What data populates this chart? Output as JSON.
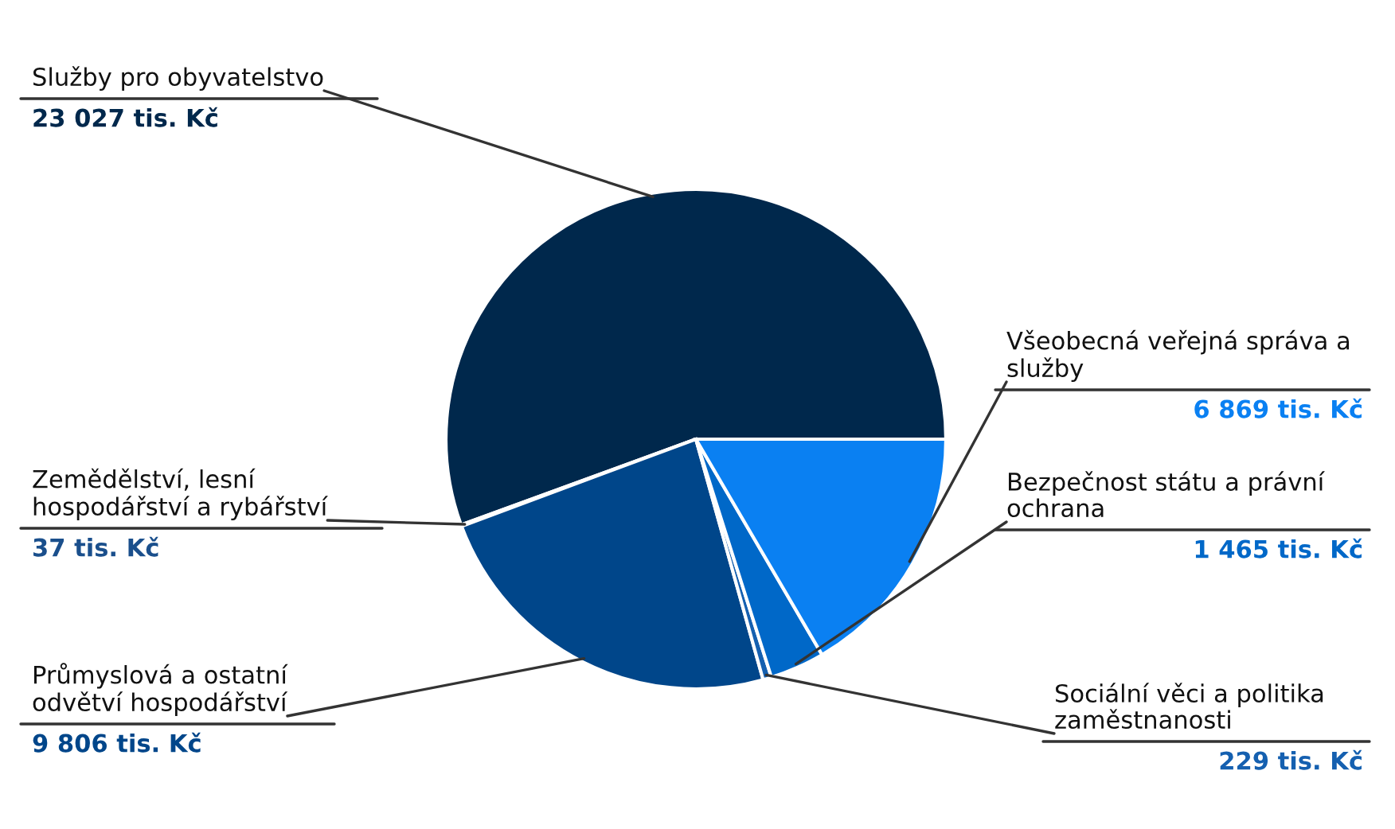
{
  "chart_data": {
    "type": "pie",
    "categories": [
      "Služby pro obyvatelstvo",
      "Zemědělství, lesní hospodářství a rybářství",
      "Průmyslová a ostatní odvětví hospodářství",
      "Sociální věci a politika zaměstnanosti",
      "Bezpečnost státu a právní ochrana",
      "Všeobecná veřejná správa a služby"
    ],
    "values": [
      23027,
      37,
      9806,
      229,
      1465,
      6869
    ],
    "value_labels": [
      "23 027 tis. Kč",
      "37 tis. Kč",
      "9 806 tis. Kč",
      "229 tis. Kč",
      "1 465 tis. Kč",
      "6 869 tis. Kč"
    ],
    "colors": [
      "#00284c",
      "#1a4f8c",
      "#00468a",
      "#1560b0",
      "#0068c8",
      "#0a80f2"
    ]
  }
}
